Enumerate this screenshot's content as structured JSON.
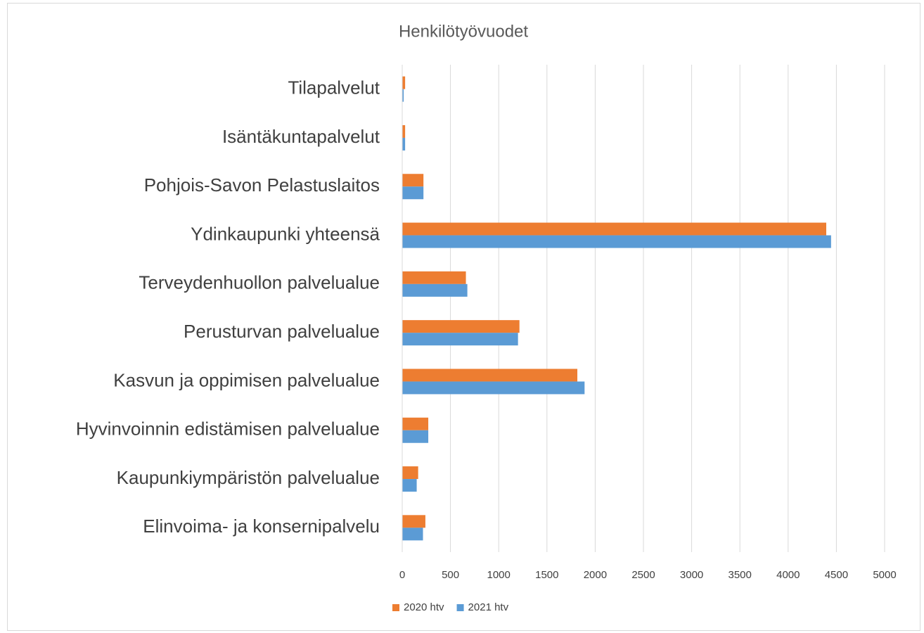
{
  "chart_data": {
    "type": "hbar",
    "title": "Henkilötyövuodet",
    "categories": [
      "Tilapalvelut",
      "Isäntäkuntapalvelut",
      "Pohjois-Savon Pelastuslaitos",
      "Ydinkaupunki yhteensä",
      "Terveydenhuollon palvelualue",
      "Perusturvan palvelualue",
      "Kasvun ja oppimisen palvelualue",
      "Hyvinvoinnin edistämisen palvelualue",
      "Kaupunkiympäristön palvelualue",
      "Elinvoima- ja konsernipalvelu"
    ],
    "series": [
      {
        "name": "2020 htv",
        "color": "#ed7d31",
        "values": [
          30,
          30,
          220,
          4395,
          660,
          1215,
          1815,
          270,
          165,
          240
        ]
      },
      {
        "name": "2021 htv",
        "color": "#5b9bd5",
        "values": [
          15,
          30,
          220,
          4445,
          675,
          1200,
          1890,
          270,
          150,
          215
        ]
      }
    ],
    "xlim": [
      0,
      5000
    ],
    "xticks": [
      0,
      500,
      1000,
      1500,
      2000,
      2500,
      3000,
      3500,
      4000,
      4500,
      5000
    ],
    "grid": true,
    "legend": "bottom"
  }
}
